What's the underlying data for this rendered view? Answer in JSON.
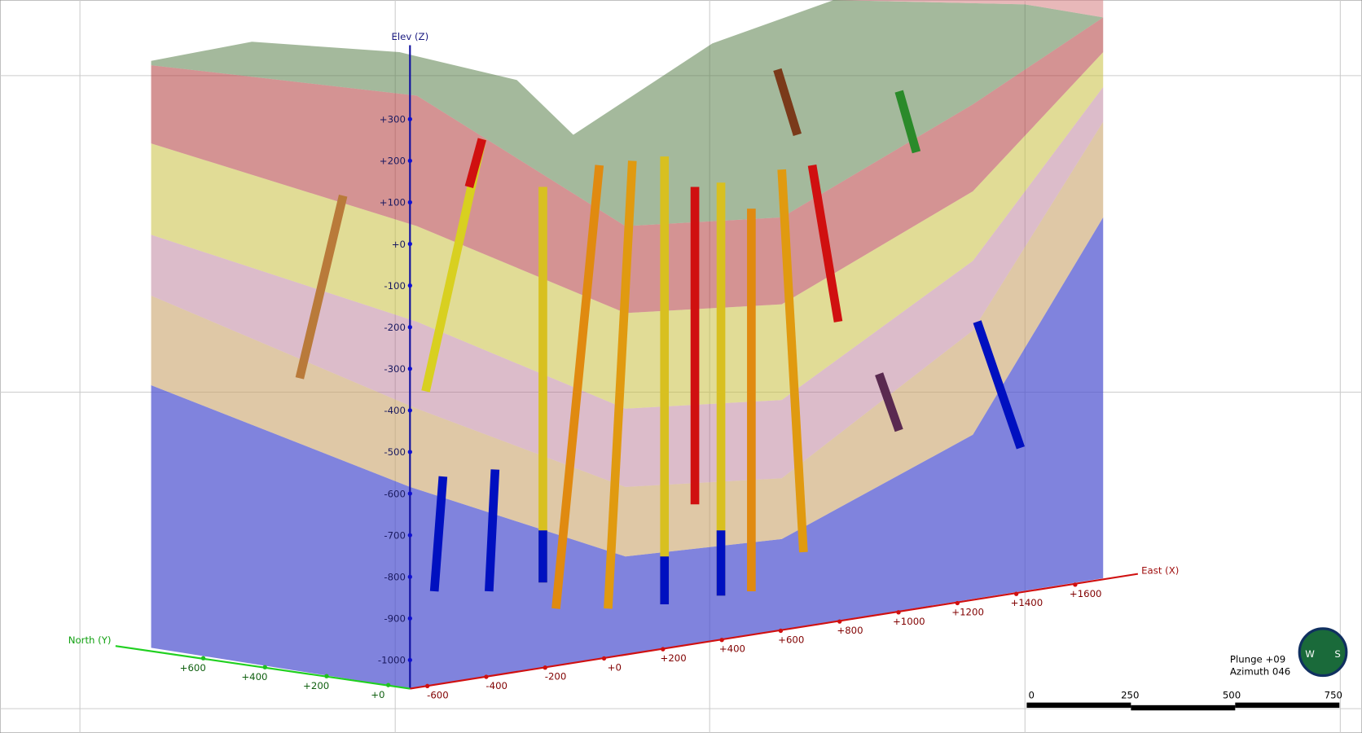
{
  "axes": {
    "z": {
      "title": "Elev (Z)",
      "ticks": [
        "+300",
        "+200",
        "+100",
        "+0",
        "-100",
        "-200",
        "-300",
        "-400",
        "-500",
        "-600",
        "-700",
        "-800",
        "-900",
        "-1000"
      ]
    },
    "x": {
      "title": "East (X)",
      "ticks": [
        "-600",
        "-400",
        "-200",
        "+0",
        "+200",
        "+400",
        "+600",
        "+800",
        "+1000",
        "+1200",
        "+1400",
        "+1600"
      ]
    },
    "y": {
      "title": "North (Y)",
      "ticks": [
        "+600",
        "+400",
        "+200",
        "+0"
      ]
    }
  },
  "view": {
    "plunge": "Plunge +09",
    "azimuth": "Azimuth 046"
  },
  "scale_bar": {
    "labels": [
      "0",
      "250",
      "500",
      "750"
    ]
  },
  "compass": {
    "labels": [
      "W",
      "S"
    ]
  }
}
